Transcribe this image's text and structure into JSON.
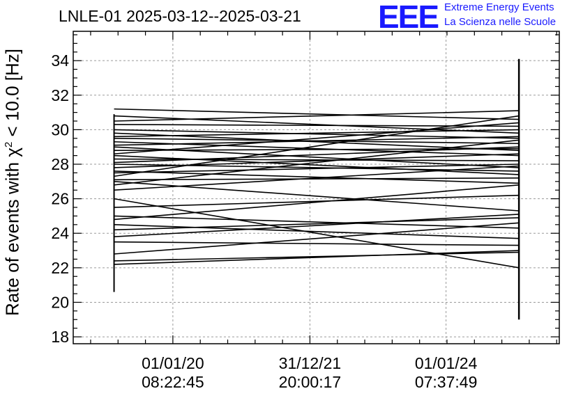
{
  "title": "LNLE-01 2025-03-12--2025-03-21",
  "logo": {
    "mark": "EEE",
    "line1": "Extreme Energy Events",
    "line2": "La Scienza nelle Scuole",
    "color": "#1a1aff"
  },
  "chart_data": {
    "type": "line",
    "ylabel_prefix": "Rate of events with ",
    "ylabel_chi": "χ",
    "ylabel_sup": "2",
    "ylabel_suffix": " < 10.0 [Hz]",
    "ylim": [
      17.6,
      35.7
    ],
    "y_ticks": [
      18,
      20,
      22,
      24,
      26,
      28,
      30,
      32,
      34
    ],
    "x_ticks": [
      {
        "pos": 0.205,
        "line1": "01/01/20",
        "line2": "08:22:45"
      },
      {
        "pos": 0.487,
        "line1": "31/12/21",
        "line2": "20:00:17"
      },
      {
        "pos": 0.767,
        "line1": "01/01/24",
        "line2": "07:37:49"
      }
    ],
    "grid": true,
    "x_start_frac": 0.084,
    "x_end_frac": 0.917,
    "series_start": [
      31.2,
      30.8,
      30.5,
      30.3,
      30.0,
      29.8,
      29.6,
      29.5,
      29.3,
      29.1,
      29.0,
      28.8,
      28.6,
      28.5,
      28.3,
      28.1,
      28.0,
      27.8,
      27.6,
      27.5,
      27.3,
      27.1,
      27.0,
      26.8,
      26.5,
      26.0,
      25.5,
      25.0,
      24.8,
      24.5,
      24.2,
      23.8,
      23.5,
      22.8,
      22.4,
      22.2
    ],
    "series_end": [
      30.6,
      29.8,
      31.1,
      30.2,
      29.5,
      28.8,
      30.0,
      29.2,
      28.5,
      29.6,
      27.8,
      28.9,
      30.4,
      27.4,
      28.2,
      29.0,
      27.6,
      28.6,
      26.9,
      28.0,
      30.8,
      27.2,
      25.3,
      29.4,
      27.9,
      22.0,
      26.2,
      24.3,
      26.8,
      23.7,
      24.9,
      25.1,
      23.3,
      24.6,
      22.9,
      23.0
    ],
    "first_col_range": [
      20.6,
      30.9
    ],
    "last_col_range": [
      19.0,
      34.1
    ]
  }
}
